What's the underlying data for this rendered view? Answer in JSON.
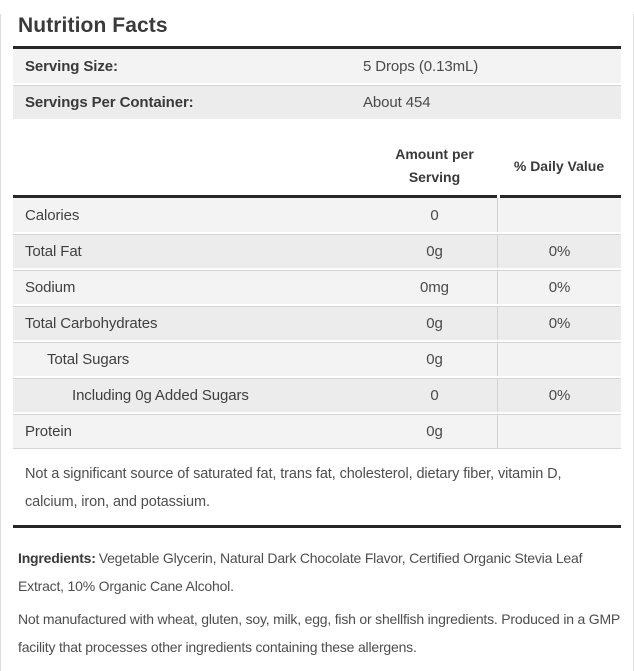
{
  "panel": {
    "title": "Nutrition Facts",
    "serving_info": {
      "rows": [
        {
          "label": "Serving Size:",
          "value": "5 Drops (0.13mL)"
        },
        {
          "label": "Servings Per Container:",
          "value": "About 454"
        }
      ]
    },
    "nutrition_table": {
      "columns": {
        "amount": "Amount per Serving",
        "daily_value": "% Daily Value"
      },
      "rows": [
        {
          "label": "Calories",
          "amount": "0",
          "dv": "",
          "indent": 0
        },
        {
          "label": "Total Fat",
          "amount": "0g",
          "dv": "0%",
          "indent": 0
        },
        {
          "label": "Sodium",
          "amount": "0mg",
          "dv": "0%",
          "indent": 0
        },
        {
          "label": "Total Carbohydrates",
          "amount": "0g",
          "dv": "0%",
          "indent": 0
        },
        {
          "label": "Total Sugars",
          "amount": "0g",
          "dv": "",
          "indent": 1
        },
        {
          "label": "Including 0g Added Sugars",
          "amount": "0",
          "dv": "0%",
          "indent": 2
        },
        {
          "label": "Protein",
          "amount": "0g",
          "dv": "",
          "indent": 0
        }
      ],
      "footnote": "Not a significant source of saturated fat, trans fat, cholesterol, dietary fiber, vitamin D, calcium, iron, and potassium."
    },
    "ingredients": {
      "label": "Ingredients:",
      "text": "Vegetable Glycerin, Natural Dark Chocolate Flavor, Certified Organic Stevia Leaf Extract, 10% Organic Cane Alcohol."
    },
    "allergen_note": "Not manufactured with wheat, gluten, soy, milk, egg, fish or shellfish ingredients. Produced in a GMP facility that processes other ingredients containing these allergens.",
    "colors": {
      "rule_dark": "#272727",
      "row_light": "#f3f3f3",
      "row_dark": "#ececec",
      "column_divider": "#d2d2d2",
      "row_separator": "#d6d6d6",
      "panel_border": "#dddddd",
      "heading_text": "#3a3a3a",
      "body_text": "#4e4e4e"
    }
  }
}
